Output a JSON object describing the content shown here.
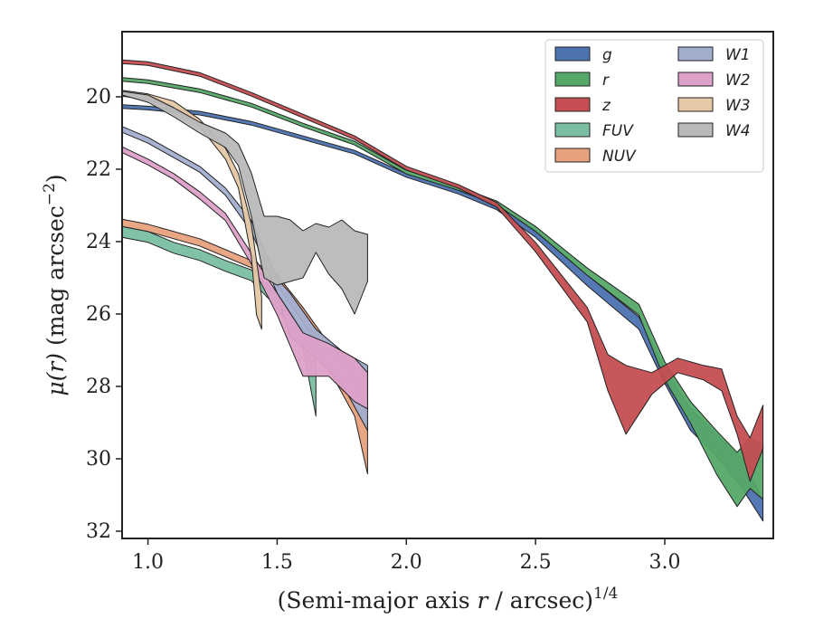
{
  "chart_data": {
    "type": "area",
    "title": "",
    "xlabel": "(Semi-major axis r / arcsec)^1/4",
    "xlabel_parts": {
      "pre": "(Semi-major axis ",
      "var": "r",
      "post": " / arcsec)",
      "exp": "1/4"
    },
    "ylabel": "μ(r) (mag arcsec^−2)",
    "ylabel_parts": {
      "mu": "μ(",
      "var": "r",
      "close": ")",
      "units": " (mag arcsec",
      "exp": "−2",
      "end": ")"
    },
    "xlim": [
      0.9,
      3.42
    ],
    "ylim": [
      32.2,
      18.2
    ],
    "y_inverted": true,
    "x_ticks": [
      1.0,
      1.5,
      2.0,
      2.5,
      3.0
    ],
    "x_tick_labels": [
      "1.0",
      "1.5",
      "2.0",
      "2.5",
      "3.0"
    ],
    "y_ticks": [
      20,
      22,
      24,
      26,
      28,
      30,
      32
    ],
    "y_tick_labels": [
      "20",
      "22",
      "24",
      "26",
      "28",
      "30",
      "32"
    ],
    "grid": false,
    "legend_placement": "top-right",
    "legend_columns": 2,
    "series": [
      {
        "name": "g",
        "color": "#4C72B0",
        "points": [
          [
            0.9,
            20.22,
            20.32
          ],
          [
            1.0,
            20.26,
            20.36
          ],
          [
            1.2,
            20.4,
            20.5
          ],
          [
            1.4,
            20.68,
            20.78
          ],
          [
            1.6,
            21.08,
            21.18
          ],
          [
            1.8,
            21.48,
            21.58
          ],
          [
            2.0,
            22.12,
            22.22
          ],
          [
            2.2,
            22.56,
            22.68
          ],
          [
            2.35,
            22.98,
            23.12
          ],
          [
            2.5,
            23.68,
            23.88
          ],
          [
            2.7,
            24.92,
            25.22
          ],
          [
            2.9,
            26.08,
            26.42
          ],
          [
            3.0,
            27.52,
            27.92
          ],
          [
            3.1,
            28.62,
            29.22
          ],
          [
            3.2,
            29.32,
            29.92
          ],
          [
            3.3,
            30.02,
            30.82
          ],
          [
            3.38,
            31.12,
            31.72
          ]
        ]
      },
      {
        "name": "r",
        "color": "#55A868",
        "points": [
          [
            0.9,
            19.47,
            19.57
          ],
          [
            1.0,
            19.53,
            19.63
          ],
          [
            1.2,
            19.78,
            19.88
          ],
          [
            1.4,
            20.18,
            20.28
          ],
          [
            1.6,
            20.73,
            20.83
          ],
          [
            1.8,
            21.23,
            21.33
          ],
          [
            2.0,
            22.03,
            22.13
          ],
          [
            2.2,
            22.48,
            22.58
          ],
          [
            2.35,
            22.88,
            22.98
          ],
          [
            2.5,
            23.58,
            23.72
          ],
          [
            2.7,
            24.73,
            24.93
          ],
          [
            2.9,
            25.73,
            26.03
          ],
          [
            3.0,
            27.32,
            27.82
          ],
          [
            3.1,
            28.42,
            29.02
          ],
          [
            3.2,
            29.22,
            30.42
          ],
          [
            3.28,
            29.82,
            31.32
          ],
          [
            3.33,
            29.42,
            30.82
          ],
          [
            3.38,
            29.62,
            31.12
          ]
        ]
      },
      {
        "name": "z",
        "color": "#C44E52",
        "points": [
          [
            0.9,
            18.98,
            19.08
          ],
          [
            1.0,
            19.03,
            19.13
          ],
          [
            1.2,
            19.33,
            19.43
          ],
          [
            1.4,
            19.88,
            19.98
          ],
          [
            1.6,
            20.48,
            20.58
          ],
          [
            1.8,
            21.08,
            21.18
          ],
          [
            2.0,
            21.92,
            22.02
          ],
          [
            2.2,
            22.42,
            22.52
          ],
          [
            2.35,
            22.92,
            23.05
          ],
          [
            2.5,
            24.02,
            24.28
          ],
          [
            2.7,
            25.82,
            26.22
          ],
          [
            2.78,
            27.12,
            28.12
          ],
          [
            2.85,
            27.42,
            29.32
          ],
          [
            2.95,
            27.62,
            28.22
          ],
          [
            3.05,
            27.22,
            27.62
          ],
          [
            3.15,
            27.42,
            27.82
          ],
          [
            3.22,
            27.52,
            28.12
          ],
          [
            3.28,
            28.82,
            29.32
          ],
          [
            3.33,
            29.42,
            30.62
          ],
          [
            3.38,
            28.52,
            29.72
          ]
        ]
      },
      {
        "name": "FUV",
        "color": "#7ABFA2",
        "points": [
          [
            0.9,
            23.58,
            23.88
          ],
          [
            1.0,
            23.72,
            24.02
          ],
          [
            1.1,
            24.02,
            24.32
          ],
          [
            1.2,
            24.22,
            24.52
          ],
          [
            1.3,
            24.52,
            24.82
          ],
          [
            1.4,
            24.78,
            25.08
          ],
          [
            1.5,
            25.42,
            25.82
          ],
          [
            1.6,
            26.42,
            26.92
          ],
          [
            1.65,
            27.02,
            28.82
          ]
        ]
      },
      {
        "name": "NUV",
        "color": "#E8A17E",
        "points": [
          [
            0.9,
            23.38,
            23.58
          ],
          [
            1.0,
            23.52,
            23.72
          ],
          [
            1.2,
            23.92,
            24.12
          ],
          [
            1.4,
            24.52,
            24.72
          ],
          [
            1.5,
            24.92,
            25.22
          ],
          [
            1.6,
            25.82,
            26.22
          ],
          [
            1.7,
            26.82,
            27.52
          ],
          [
            1.8,
            27.72,
            28.82
          ],
          [
            1.85,
            28.82,
            30.42
          ]
        ]
      },
      {
        "name": "W1",
        "color": "#A3AECF",
        "points": [
          [
            0.9,
            20.82,
            20.98
          ],
          [
            1.0,
            21.12,
            21.28
          ],
          [
            1.1,
            21.52,
            21.68
          ],
          [
            1.2,
            21.92,
            22.08
          ],
          [
            1.3,
            22.52,
            22.72
          ],
          [
            1.4,
            23.42,
            23.72
          ],
          [
            1.5,
            25.02,
            25.42
          ],
          [
            1.55,
            25.42,
            26.62
          ],
          [
            1.65,
            26.42,
            27.22
          ],
          [
            1.75,
            27.02,
            27.92
          ],
          [
            1.85,
            27.42,
            29.22
          ]
        ]
      },
      {
        "name": "W2",
        "color": "#DDA0C8",
        "points": [
          [
            0.9,
            21.38,
            21.54
          ],
          [
            1.0,
            21.72,
            21.88
          ],
          [
            1.1,
            22.12,
            22.28
          ],
          [
            1.2,
            22.62,
            22.82
          ],
          [
            1.3,
            23.22,
            23.42
          ],
          [
            1.4,
            24.32,
            24.62
          ],
          [
            1.5,
            25.42,
            26.02
          ],
          [
            1.6,
            26.52,
            27.72
          ],
          [
            1.7,
            26.82,
            27.72
          ],
          [
            1.8,
            27.22,
            28.42
          ],
          [
            1.85,
            27.62,
            28.62
          ]
        ]
      },
      {
        "name": "W3",
        "color": "#E5C8A5",
        "points": [
          [
            0.9,
            19.82,
            19.98
          ],
          [
            1.0,
            19.92,
            20.08
          ],
          [
            1.1,
            20.12,
            20.32
          ],
          [
            1.2,
            20.62,
            20.82
          ],
          [
            1.3,
            21.42,
            21.72
          ],
          [
            1.35,
            22.12,
            22.52
          ],
          [
            1.4,
            23.52,
            24.42
          ],
          [
            1.42,
            24.52,
            26.02
          ],
          [
            1.44,
            25.52,
            26.42
          ]
        ]
      },
      {
        "name": "W4",
        "color": "#B9B9B9",
        "points": [
          [
            0.9,
            19.85,
            19.95
          ],
          [
            1.0,
            19.95,
            20.15
          ],
          [
            1.1,
            20.3,
            20.55
          ],
          [
            1.2,
            20.7,
            21.0
          ],
          [
            1.3,
            21.0,
            21.4
          ],
          [
            1.35,
            21.3,
            21.9
          ],
          [
            1.4,
            22.1,
            23.3
          ],
          [
            1.45,
            23.3,
            25.0
          ],
          [
            1.5,
            23.3,
            25.2
          ],
          [
            1.55,
            23.4,
            25.1
          ],
          [
            1.6,
            23.7,
            25.0
          ],
          [
            1.65,
            23.5,
            24.3
          ],
          [
            1.7,
            23.6,
            24.9
          ],
          [
            1.75,
            23.4,
            25.3
          ],
          [
            1.8,
            23.7,
            26.0
          ],
          [
            1.85,
            23.8,
            25.1
          ]
        ]
      }
    ]
  }
}
